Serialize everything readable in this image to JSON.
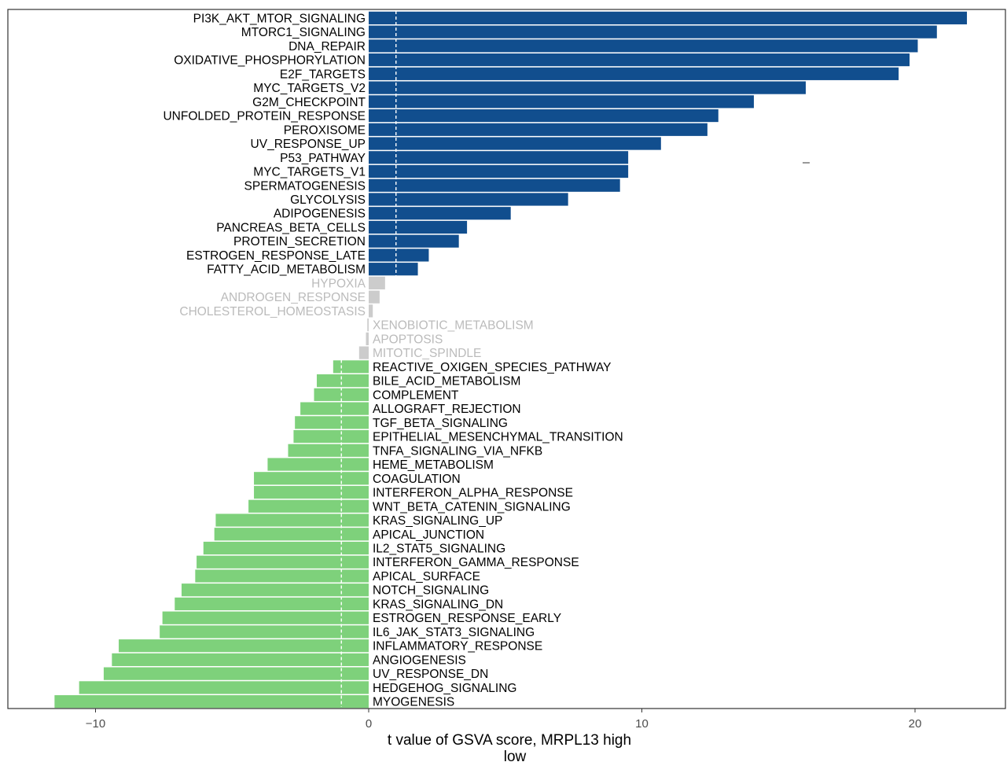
{
  "chart_data": {
    "type": "bar",
    "orientation": "horizontal",
    "xlabel": "t value of GSVA score, MRPL13 high",
    "xlabel_line2": "low",
    "xlim": [
      -12.6,
      23.9
    ],
    "xticks": [
      -10,
      0,
      10,
      20
    ],
    "tick_labels": [
      "−10",
      "0",
      "10",
      "20"
    ],
    "threshold_lines": [
      -1,
      1
    ],
    "grid": false,
    "colors": {
      "up": "#114E8E",
      "down": "#7ED17B",
      "ns": "#CCCCCC",
      "ns_text": "#BBBBBB",
      "sig_text": "#000000"
    },
    "categories": [
      "PI3K_AKT_MTOR_SIGNALING",
      "MTORC1_SIGNALING",
      "DNA_REPAIR",
      "OXIDATIVE_PHOSPHORYLATION",
      "E2F_TARGETS",
      "MYC_TARGETS_V2",
      "G2M_CHECKPOINT",
      "UNFOLDED_PROTEIN_RESPONSE",
      "PEROXISOME",
      "UV_RESPONSE_UP",
      "P53_PATHWAY",
      "MYC_TARGETS_V1",
      "SPERMATOGENESIS",
      "GLYCOLYSIS",
      "ADIPOGENESIS",
      "PANCREAS_BETA_CELLS",
      "PROTEIN_SECRETION",
      "ESTROGEN_RESPONSE_LATE",
      "FATTY_ACID_METABOLISM",
      "HYPOXIA",
      "ANDROGEN_RESPONSE",
      "CHOLESTEROL_HOMEOSTASIS",
      "XENOBIOTIC_METABOLISM",
      "APOPTOSIS",
      "MITOTIC_SPINDLE",
      "REACTIVE_OXIGEN_SPECIES_PATHWAY",
      "BILE_ACID_METABOLISM",
      "COMPLEMENT",
      "ALLOGRAFT_REJECTION",
      "TGF_BETA_SIGNALING",
      "EPITHELIAL_MESENCHYMAL_TRANSITION",
      "TNFA_SIGNALING_VIA_NFKB",
      "HEME_METABOLISM",
      "COAGULATION",
      "INTERFERON_ALPHA_RESPONSE",
      "WNT_BETA_CATENIN_SIGNALING",
      "KRAS_SIGNALING_UP",
      "APICAL_JUNCTION",
      "IL2_STAT5_SIGNALING",
      "INTERFERON_GAMMA_RESPONSE",
      "APICAL_SURFACE",
      "NOTCH_SIGNALING",
      "KRAS_SIGNALING_DN",
      "ESTROGEN_RESPONSE_EARLY",
      "IL6_JAK_STAT3_SIGNALING",
      "INFLAMMATORY_RESPONSE",
      "ANGIOGENESIS",
      "UV_RESPONSE_DN",
      "HEDGEHOG_SIGNALING",
      "MYOGENESIS"
    ],
    "values": [
      21.9,
      20.8,
      20.1,
      19.8,
      19.4,
      16.0,
      14.1,
      12.8,
      12.4,
      10.7,
      9.5,
      9.5,
      9.2,
      7.3,
      5.2,
      3.6,
      3.3,
      2.2,
      1.8,
      0.6,
      0.4,
      0.15,
      -0.05,
      -0.1,
      -0.35,
      -1.3,
      -1.9,
      -2.0,
      -2.5,
      -2.7,
      -2.75,
      -2.95,
      -3.7,
      -4.2,
      -4.2,
      -4.4,
      -5.6,
      -5.65,
      -6.05,
      -6.3,
      -6.35,
      -6.85,
      -7.1,
      -7.55,
      -7.65,
      -9.15,
      -9.4,
      -9.7,
      -10.6,
      -11.5
    ]
  }
}
